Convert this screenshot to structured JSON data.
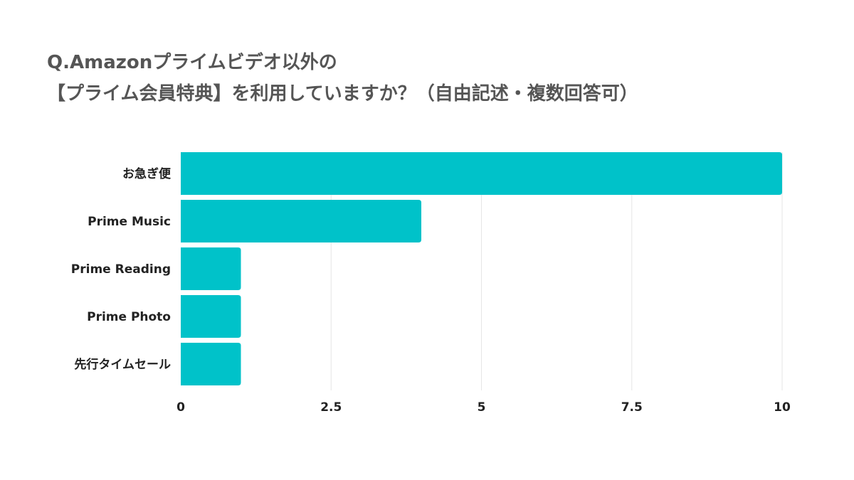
{
  "chart_data": {
    "type": "bar",
    "orientation": "horizontal",
    "title_lines": [
      "Q.Amazonプライムビデオ以外の",
      "【プライム会員特典】を利用していますか？（自由記述・複数回答可）"
    ],
    "categories": [
      "お急ぎ便",
      "Prime Music",
      "Prime Reading",
      "Prime Photo",
      "先行タイムセール"
    ],
    "values": [
      10,
      4,
      1,
      1,
      1
    ],
    "xlim": [
      0,
      10
    ],
    "xticks": [
      "0",
      "2.5",
      "5",
      "7.5",
      "10"
    ],
    "xtick_values": [
      0,
      2.5,
      5,
      7.5,
      10
    ],
    "grid": "vertical",
    "legend": "none",
    "bar_color": "#00c2c9",
    "grid_color": "#e6e6e6",
    "title_color": "#555555"
  }
}
